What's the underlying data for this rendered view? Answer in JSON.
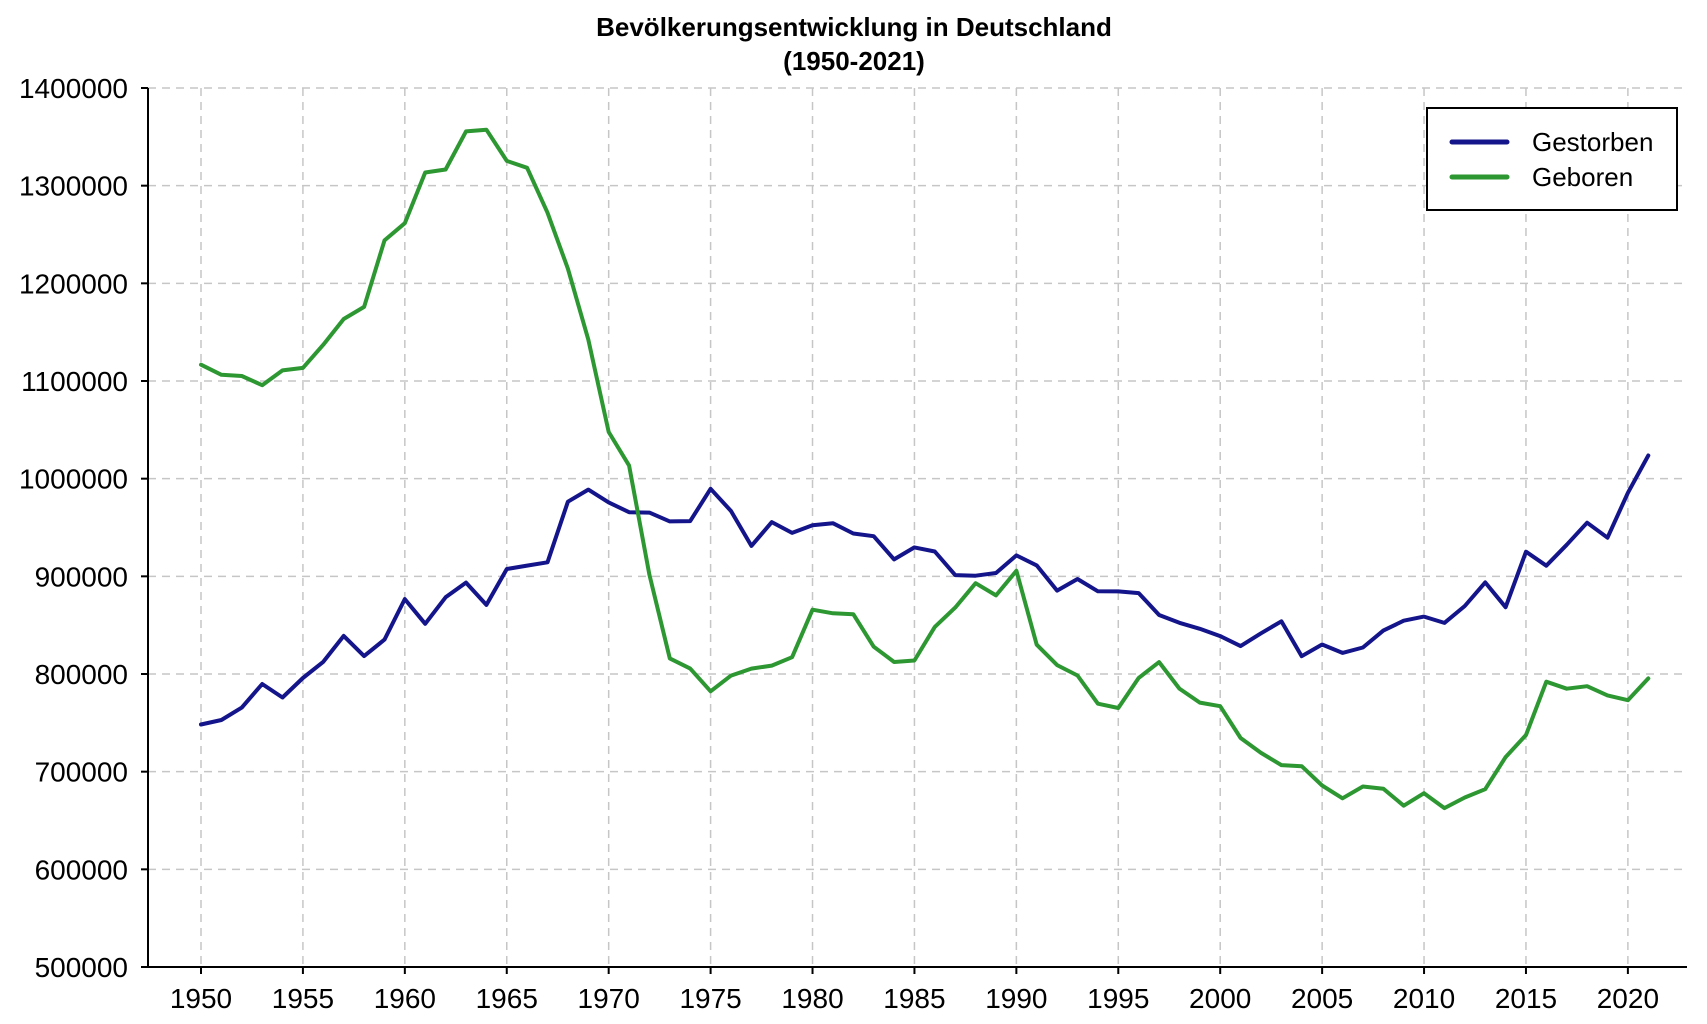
{
  "chart_data": {
    "type": "line",
    "title": "Bevölkerungsentwicklung in Deutschland",
    "subtitle": "(1950-2021)",
    "xlabel": "",
    "ylabel": "",
    "grid": true,
    "grid_color": "#c6c6c6",
    "axis_color": "#000000",
    "background_color": "#ffffff",
    "legend_position": "upper right",
    "xlim": [
      1947.4,
      2022.9
    ],
    "ylim": [
      500000,
      1400000
    ],
    "xticks": [
      1950,
      1955,
      1960,
      1965,
      1970,
      1975,
      1980,
      1985,
      1990,
      1995,
      2000,
      2005,
      2010,
      2015,
      2020
    ],
    "yticks": [
      500000,
      600000,
      700000,
      800000,
      900000,
      1000000,
      1100000,
      1200000,
      1300000,
      1400000
    ],
    "x": [
      1950,
      1951,
      1952,
      1953,
      1954,
      1955,
      1956,
      1957,
      1958,
      1959,
      1960,
      1961,
      1962,
      1963,
      1964,
      1965,
      1966,
      1967,
      1968,
      1969,
      1970,
      1971,
      1972,
      1973,
      1974,
      1975,
      1976,
      1977,
      1978,
      1979,
      1980,
      1981,
      1982,
      1983,
      1984,
      1985,
      1986,
      1987,
      1988,
      1989,
      1990,
      1991,
      1992,
      1993,
      1994,
      1995,
      1996,
      1997,
      1998,
      1999,
      2000,
      2001,
      2002,
      2003,
      2004,
      2005,
      2006,
      2007,
      2008,
      2009,
      2010,
      2011,
      2012,
      2013,
      2014,
      2015,
      2016,
      2017,
      2018,
      2019,
      2020,
      2021
    ],
    "series": [
      {
        "name": "Gestorben",
        "color": "#14148b",
        "values": [
          748329,
          752873,
          765634,
          789747,
          775956,
          795938,
          812463,
          838988,
          818367,
          835212,
          876721,
          851420,
          878537,
          893625,
          870748,
          907523,
          911000,
          914417,
          976374,
          988761,
          975664,
          965623,
          965254,
          956222,
          956573,
          989649,
          966914,
          931155,
          955550,
          944474,
          952371,
          954435,
          943832,
          941095,
          917299,
          929649,
          925412,
          901291,
          900627,
          903441,
          921445,
          911245,
          885443,
          897270,
          884661,
          884588,
          882843,
          860389,
          852382,
          846330,
          838797,
          828541,
          841686,
          853946,
          818271,
          830227,
          821627,
          827155,
          844439,
          854544,
          858768,
          852328,
          869582,
          893825,
          868356,
          925200,
          910899,
          932263,
          954874,
          939520,
          985572,
          1023687
        ]
      },
      {
        "name": "Geboren",
        "color": "#2d9732",
        "values": [
          1116701,
          1106380,
          1105085,
          1095698,
          1110902,
          1113408,
          1137169,
          1163491,
          1175870,
          1243922,
          1261614,
          1313505,
          1316534,
          1355595,
          1357304,
          1325386,
          1318303,
          1272276,
          1214968,
          1142366,
          1047737,
          1013396,
          901657,
          815969,
          805500,
          782310,
          798334,
          805496,
          808619,
          817217,
          865789,
          862100,
          861275,
          827933,
          812292,
          813803,
          848232,
          867969,
          892993,
          880459,
          905675,
          830019,
          809114,
          798447,
          769603,
          765221,
          796013,
          812173,
          785034,
          770744,
          766999,
          734475,
          719250,
          706721,
          705622,
          685795,
          672724,
          684862,
          682514,
          665126,
          677947,
          662685,
          673544,
          682069,
          714927,
          737575,
          792141,
          784901,
          787523,
          778090,
          773144,
          795492
        ]
      }
    ]
  }
}
